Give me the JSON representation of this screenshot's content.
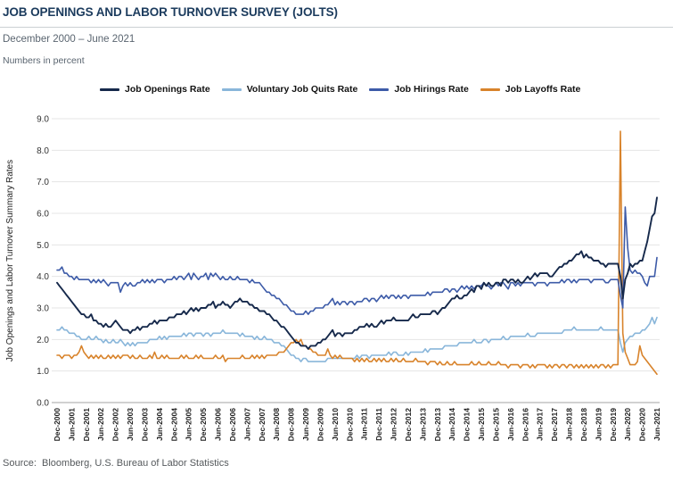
{
  "header": {
    "title": "JOB OPENINGS AND LABOR TURNOVER SURVEY (JOLTS)",
    "subtitle": "December 2000 – June 2021",
    "note": "Numbers in percent"
  },
  "source": "Source:  Bloomberg, U.S. Bureau of Labor Statistics",
  "chart_data": {
    "type": "line",
    "title": "Job Openings and Labor Turnover Survey (JOLTS)",
    "xlabel": "",
    "ylabel": "Job Openings and Labor Turnover Summary Rates",
    "ylim": [
      0,
      9
    ],
    "ytick_step": 1,
    "grid": "horizontal",
    "legend_position": "top",
    "x_frequency": "monthly",
    "x_start": "Dec-2000",
    "x_end": "Jun-2021",
    "x_tick_every_months": 6,
    "x_tick_labels": [
      "Dec-2000",
      "Jun-2001",
      "Dec-2001",
      "Jun-2002",
      "Dec-2002",
      "Jun-2003",
      "Dec-2003",
      "Jun-2004",
      "Dec-2004",
      "Jun-2005",
      "Dec-2005",
      "Jun-2006",
      "Dec-2006",
      "Jun-2007",
      "Dec-2007",
      "Jun-2008",
      "Dec-2008",
      "Jun-2009",
      "Dec-2009",
      "Jun-2010",
      "Dec-2010",
      "Jun-2011",
      "Dec-2011",
      "Jun-2012",
      "Dec-2012",
      "Jun-2013",
      "Dec-2013",
      "Jun-2014",
      "Dec-2014",
      "Jun-2015",
      "Dec-2015",
      "Jun-2016",
      "Dec-2016",
      "Jun-2017",
      "Dec-2017",
      "Jun-2018",
      "Dec-2018",
      "Jun-2019",
      "Dec-2019",
      "Jun-2020",
      "Dec-2020",
      "Jun-2021"
    ],
    "series": [
      {
        "name": "Job Openings Rate",
        "color": "#16294b",
        "values": [
          3.8,
          3.7,
          3.6,
          3.5,
          3.4,
          3.3,
          3.2,
          3.1,
          3.0,
          2.9,
          2.8,
          2.8,
          2.7,
          2.7,
          2.8,
          2.6,
          2.6,
          2.5,
          2.5,
          2.4,
          2.5,
          2.4,
          2.4,
          2.5,
          2.6,
          2.5,
          2.4,
          2.3,
          2.3,
          2.3,
          2.2,
          2.3,
          2.3,
          2.4,
          2.3,
          2.4,
          2.4,
          2.4,
          2.5,
          2.5,
          2.6,
          2.5,
          2.6,
          2.6,
          2.6,
          2.6,
          2.7,
          2.7,
          2.7,
          2.8,
          2.8,
          2.8,
          2.9,
          2.8,
          2.9,
          3.0,
          2.9,
          3.0,
          2.9,
          3.0,
          3.0,
          3.0,
          3.1,
          3.1,
          3.2,
          3.0,
          3.1,
          3.1,
          3.2,
          3.1,
          3.1,
          3.0,
          3.1,
          3.2,
          3.2,
          3.3,
          3.2,
          3.2,
          3.2,
          3.1,
          3.1,
          3.0,
          3.0,
          2.9,
          2.9,
          2.9,
          2.8,
          2.8,
          2.7,
          2.6,
          2.6,
          2.5,
          2.4,
          2.4,
          2.3,
          2.2,
          2.1,
          2.0,
          1.9,
          1.9,
          1.8,
          1.8,
          1.8,
          1.7,
          1.8,
          1.8,
          1.8,
          1.9,
          1.9,
          2.0,
          2.0,
          2.1,
          2.2,
          2.3,
          2.1,
          2.2,
          2.2,
          2.1,
          2.2,
          2.2,
          2.2,
          2.2,
          2.3,
          2.3,
          2.4,
          2.4,
          2.4,
          2.5,
          2.4,
          2.5,
          2.4,
          2.4,
          2.5,
          2.6,
          2.5,
          2.6,
          2.6,
          2.6,
          2.7,
          2.6,
          2.6,
          2.6,
          2.6,
          2.6,
          2.6,
          2.7,
          2.8,
          2.7,
          2.7,
          2.8,
          2.8,
          2.8,
          2.8,
          2.8,
          2.9,
          2.9,
          2.8,
          2.9,
          3.0,
          3.0,
          3.1,
          3.2,
          3.3,
          3.3,
          3.4,
          3.3,
          3.3,
          3.4,
          3.4,
          3.5,
          3.6,
          3.5,
          3.7,
          3.7,
          3.6,
          3.8,
          3.7,
          3.8,
          3.7,
          3.7,
          3.8,
          3.8,
          3.7,
          3.9,
          3.9,
          3.8,
          3.9,
          3.9,
          3.8,
          3.9,
          3.8,
          3.8,
          3.9,
          4.0,
          3.9,
          4.0,
          4.1,
          4.0,
          4.1,
          4.1,
          4.1,
          4.1,
          4.0,
          4.0,
          4.1,
          4.2,
          4.3,
          4.3,
          4.4,
          4.4,
          4.5,
          4.5,
          4.6,
          4.7,
          4.7,
          4.8,
          4.6,
          4.7,
          4.6,
          4.6,
          4.5,
          4.5,
          4.5,
          4.4,
          4.4,
          4.3,
          4.4,
          4.4,
          4.4,
          4.4,
          4.4,
          4.0,
          3.3,
          3.9,
          4.1,
          4.4,
          4.3,
          4.4,
          4.4,
          4.5,
          4.5,
          4.8,
          5.1,
          5.5,
          5.9,
          6.0,
          6.5
        ]
      },
      {
        "name": "Voluntary Job Quits Rate",
        "color": "#89b6da",
        "values": [
          2.3,
          2.3,
          2.4,
          2.3,
          2.3,
          2.2,
          2.2,
          2.2,
          2.1,
          2.1,
          2.0,
          2.0,
          2.0,
          2.1,
          2.0,
          2.0,
          2.1,
          2.0,
          2.0,
          1.9,
          2.0,
          1.9,
          1.9,
          2.0,
          1.9,
          1.9,
          2.0,
          1.9,
          1.8,
          1.9,
          1.8,
          1.9,
          1.8,
          1.9,
          1.9,
          1.9,
          1.9,
          1.9,
          2.0,
          2.0,
          2.0,
          2.0,
          2.1,
          2.0,
          2.1,
          2.0,
          2.1,
          2.1,
          2.1,
          2.1,
          2.1,
          2.1,
          2.2,
          2.1,
          2.2,
          2.2,
          2.1,
          2.2,
          2.2,
          2.2,
          2.1,
          2.2,
          2.2,
          2.1,
          2.2,
          2.2,
          2.2,
          2.2,
          2.3,
          2.2,
          2.2,
          2.2,
          2.2,
          2.2,
          2.2,
          2.1,
          2.2,
          2.1,
          2.1,
          2.1,
          2.1,
          2.0,
          2.1,
          2.0,
          2.0,
          2.1,
          2.0,
          2.0,
          2.0,
          1.9,
          1.9,
          1.9,
          1.8,
          1.8,
          1.7,
          1.6,
          1.5,
          1.5,
          1.4,
          1.4,
          1.3,
          1.4,
          1.4,
          1.3,
          1.3,
          1.3,
          1.3,
          1.3,
          1.3,
          1.3,
          1.3,
          1.4,
          1.4,
          1.4,
          1.4,
          1.4,
          1.4,
          1.4,
          1.4,
          1.4,
          1.4,
          1.4,
          1.4,
          1.5,
          1.4,
          1.5,
          1.5,
          1.5,
          1.4,
          1.5,
          1.5,
          1.5,
          1.5,
          1.5,
          1.5,
          1.5,
          1.6,
          1.5,
          1.6,
          1.6,
          1.5,
          1.5,
          1.5,
          1.6,
          1.5,
          1.6,
          1.6,
          1.6,
          1.6,
          1.6,
          1.6,
          1.7,
          1.6,
          1.7,
          1.7,
          1.7,
          1.7,
          1.7,
          1.7,
          1.8,
          1.8,
          1.8,
          1.8,
          1.8,
          1.8,
          1.9,
          1.9,
          1.9,
          1.9,
          1.9,
          1.9,
          2.0,
          1.9,
          1.9,
          1.9,
          2.0,
          2.0,
          1.9,
          2.0,
          2.0,
          2.0,
          2.0,
          2.0,
          2.1,
          2.0,
          2.0,
          2.1,
          2.1,
          2.1,
          2.1,
          2.1,
          2.1,
          2.1,
          2.2,
          2.1,
          2.1,
          2.1,
          2.2,
          2.2,
          2.2,
          2.2,
          2.2,
          2.2,
          2.2,
          2.2,
          2.2,
          2.2,
          2.2,
          2.3,
          2.3,
          2.3,
          2.3,
          2.4,
          2.3,
          2.3,
          2.3,
          2.3,
          2.3,
          2.3,
          2.3,
          2.3,
          2.3,
          2.3,
          2.4,
          2.3,
          2.3,
          2.3,
          2.3,
          2.3,
          2.3,
          2.3,
          1.9,
          1.6,
          1.9,
          2.0,
          2.1,
          2.1,
          2.2,
          2.2,
          2.2,
          2.3,
          2.3,
          2.4,
          2.5,
          2.7,
          2.5,
          2.7
        ]
      },
      {
        "name": "Job Hirings Rate",
        "color": "#3d5ba8",
        "values": [
          4.2,
          4.2,
          4.3,
          4.1,
          4.1,
          4.0,
          4.0,
          3.9,
          4.0,
          3.9,
          3.9,
          3.9,
          3.9,
          3.9,
          3.8,
          3.9,
          3.8,
          3.9,
          3.8,
          3.9,
          3.8,
          3.7,
          3.8,
          3.8,
          3.8,
          3.8,
          3.5,
          3.7,
          3.8,
          3.7,
          3.8,
          3.7,
          3.7,
          3.8,
          3.8,
          3.9,
          3.8,
          3.9,
          3.8,
          3.9,
          3.8,
          3.9,
          3.9,
          3.9,
          3.8,
          3.9,
          3.9,
          3.9,
          4.0,
          3.9,
          4.0,
          4.0,
          3.9,
          4.0,
          4.1,
          3.9,
          4.1,
          4.0,
          3.9,
          4.0,
          4.0,
          4.1,
          3.9,
          4.1,
          4.0,
          4.1,
          4.0,
          3.9,
          4.0,
          3.9,
          3.9,
          4.0,
          3.9,
          3.9,
          4.0,
          3.9,
          3.9,
          3.9,
          3.9,
          3.8,
          3.9,
          3.8,
          3.8,
          3.8,
          3.7,
          3.6,
          3.5,
          3.5,
          3.4,
          3.4,
          3.3,
          3.3,
          3.2,
          3.1,
          3.1,
          3.0,
          2.9,
          2.9,
          2.8,
          2.8,
          2.8,
          2.8,
          2.9,
          2.8,
          2.9,
          2.9,
          3.0,
          3.0,
          3.0,
          3.0,
          3.1,
          3.1,
          3.2,
          3.3,
          3.1,
          3.2,
          3.1,
          3.2,
          3.2,
          3.1,
          3.2,
          3.2,
          3.1,
          3.2,
          3.2,
          3.2,
          3.3,
          3.3,
          3.2,
          3.3,
          3.3,
          3.2,
          3.3,
          3.4,
          3.3,
          3.4,
          3.3,
          3.4,
          3.4,
          3.3,
          3.4,
          3.3,
          3.4,
          3.4,
          3.3,
          3.4,
          3.4,
          3.4,
          3.4,
          3.4,
          3.4,
          3.4,
          3.5,
          3.4,
          3.5,
          3.5,
          3.5,
          3.5,
          3.5,
          3.6,
          3.6,
          3.5,
          3.6,
          3.6,
          3.5,
          3.6,
          3.7,
          3.6,
          3.7,
          3.6,
          3.7,
          3.6,
          3.7,
          3.7,
          3.7,
          3.8,
          3.7,
          3.7,
          3.6,
          3.7,
          3.8,
          3.7,
          3.8,
          3.8,
          3.7,
          3.6,
          3.8,
          3.8,
          3.7,
          3.8,
          3.7,
          3.8,
          3.8,
          3.8,
          3.8,
          3.8,
          3.7,
          3.8,
          3.8,
          3.8,
          3.8,
          3.7,
          3.8,
          3.8,
          3.8,
          3.8,
          3.8,
          3.9,
          3.8,
          3.9,
          3.9,
          3.8,
          3.9,
          3.8,
          3.9,
          3.9,
          3.9,
          3.9,
          3.9,
          3.8,
          3.9,
          3.9,
          3.9,
          3.9,
          3.9,
          3.8,
          3.8,
          3.9,
          3.9,
          3.9,
          3.9,
          3.4,
          3.0,
          6.2,
          4.9,
          4.2,
          4.1,
          4.2,
          4.1,
          4.1,
          4.0,
          3.8,
          3.7,
          4.0,
          4.0,
          4.0,
          4.6
        ]
      },
      {
        "name": "Job Layoffs Rate",
        "color": "#d8832b",
        "values": [
          1.5,
          1.5,
          1.4,
          1.5,
          1.5,
          1.5,
          1.4,
          1.5,
          1.5,
          1.6,
          1.8,
          1.6,
          1.5,
          1.4,
          1.5,
          1.4,
          1.5,
          1.4,
          1.5,
          1.4,
          1.4,
          1.5,
          1.4,
          1.5,
          1.4,
          1.5,
          1.4,
          1.5,
          1.5,
          1.5,
          1.4,
          1.5,
          1.4,
          1.4,
          1.5,
          1.4,
          1.4,
          1.4,
          1.5,
          1.4,
          1.6,
          1.4,
          1.4,
          1.5,
          1.4,
          1.5,
          1.4,
          1.4,
          1.4,
          1.4,
          1.4,
          1.5,
          1.4,
          1.5,
          1.4,
          1.4,
          1.4,
          1.5,
          1.4,
          1.5,
          1.4,
          1.4,
          1.4,
          1.4,
          1.4,
          1.5,
          1.4,
          1.4,
          1.5,
          1.3,
          1.4,
          1.4,
          1.4,
          1.4,
          1.4,
          1.4,
          1.5,
          1.4,
          1.4,
          1.4,
          1.5,
          1.4,
          1.5,
          1.4,
          1.5,
          1.4,
          1.5,
          1.5,
          1.5,
          1.5,
          1.5,
          1.6,
          1.6,
          1.6,
          1.7,
          1.8,
          1.9,
          1.9,
          2.0,
          1.9,
          2.0,
          1.8,
          1.8,
          1.7,
          1.7,
          1.6,
          1.6,
          1.5,
          1.5,
          1.5,
          1.5,
          1.7,
          1.5,
          1.4,
          1.5,
          1.4,
          1.5,
          1.4,
          1.4,
          1.4,
          1.4,
          1.4,
          1.3,
          1.4,
          1.3,
          1.4,
          1.3,
          1.4,
          1.3,
          1.3,
          1.4,
          1.3,
          1.4,
          1.3,
          1.4,
          1.3,
          1.3,
          1.4,
          1.3,
          1.4,
          1.3,
          1.3,
          1.4,
          1.3,
          1.3,
          1.3,
          1.3,
          1.4,
          1.3,
          1.3,
          1.3,
          1.3,
          1.2,
          1.3,
          1.3,
          1.3,
          1.2,
          1.3,
          1.2,
          1.2,
          1.3,
          1.2,
          1.2,
          1.3,
          1.2,
          1.2,
          1.2,
          1.2,
          1.2,
          1.2,
          1.3,
          1.2,
          1.2,
          1.3,
          1.2,
          1.2,
          1.2,
          1.3,
          1.2,
          1.2,
          1.2,
          1.3,
          1.2,
          1.2,
          1.2,
          1.1,
          1.2,
          1.2,
          1.2,
          1.2,
          1.1,
          1.2,
          1.2,
          1.2,
          1.1,
          1.2,
          1.1,
          1.2,
          1.2,
          1.2,
          1.2,
          1.1,
          1.2,
          1.1,
          1.2,
          1.2,
          1.1,
          1.2,
          1.2,
          1.1,
          1.2,
          1.2,
          1.1,
          1.2,
          1.1,
          1.2,
          1.1,
          1.2,
          1.1,
          1.2,
          1.1,
          1.2,
          1.1,
          1.2,
          1.2,
          1.1,
          1.2,
          1.1,
          1.2,
          1.2,
          1.2,
          8.6,
          2.2,
          1.6,
          1.4,
          1.2,
          1.2,
          1.2,
          1.3,
          1.8,
          1.5,
          1.4,
          1.3,
          1.2,
          1.1,
          1.0,
          0.9
        ]
      }
    ]
  }
}
